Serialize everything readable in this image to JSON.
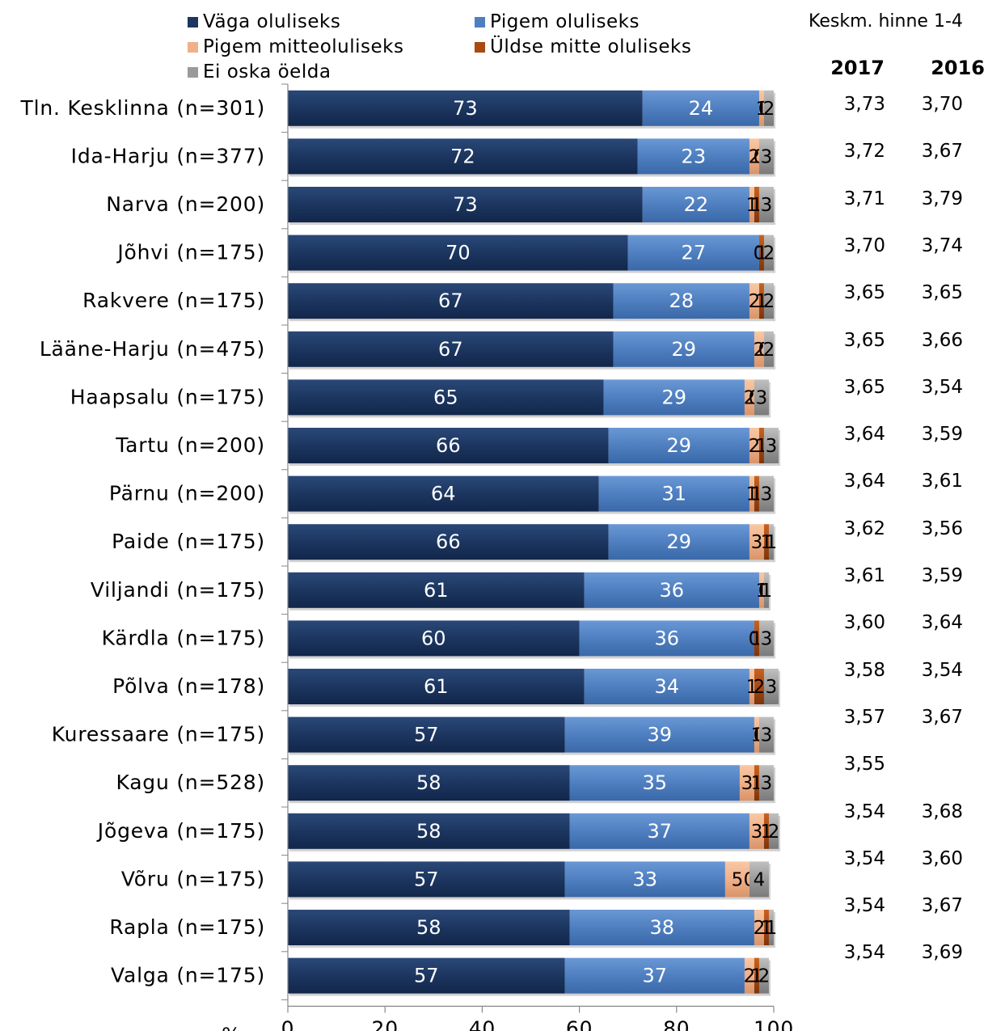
{
  "chart_data": {
    "type": "bar",
    "orientation": "horizontal",
    "stacked": true,
    "xlabel": "%",
    "xlim": [
      0,
      100
    ],
    "xticks": [
      0,
      20,
      40,
      60,
      80,
      100
    ],
    "legend_position": "top",
    "categories": [
      "Tln. Kesklinna (n=301)",
      "Ida-Harju (n=377)",
      "Narva (n=200)",
      "Jõhvi (n=175)",
      "Rakvere (n=175)",
      "Lääne-Harju (n=475)",
      "Haapsalu (n=175)",
      "Tartu (n=200)",
      "Pärnu (n=200)",
      "Paide (n=175)",
      "Viljandi (n=175)",
      "Kärdla (n=175)",
      "Põlva (n=178)",
      "Kuressaare (n=175)",
      "Kagu (n=528)",
      "Jõgeva (n=175)",
      "Võru (n=175)",
      "Rapla (n=175)",
      "Valga (n=175)"
    ],
    "series": [
      {
        "name": "Väga oluliseks",
        "color": "#1c3660",
        "values": [
          73,
          72,
          73,
          70,
          67,
          67,
          65,
          66,
          64,
          66,
          61,
          60,
          61,
          57,
          58,
          58,
          57,
          58,
          57
        ]
      },
      {
        "name": "Pigem oluliseks",
        "color": "#4f7fc0",
        "values": [
          24,
          23,
          22,
          27,
          28,
          29,
          29,
          29,
          31,
          29,
          36,
          36,
          34,
          39,
          35,
          37,
          33,
          38,
          37
        ]
      },
      {
        "name": "Pigem mitteoluliseks",
        "color": "#f0b088",
        "values": [
          1,
          2,
          1,
          0,
          2,
          2,
          2,
          2,
          1,
          3,
          1,
          0,
          1,
          1,
          3,
          3,
          5,
          2,
          2
        ]
      },
      {
        "name": "Üldse mitte oluliseks",
        "color": "#a94a12",
        "values": [
          0,
          0,
          1,
          1,
          1,
          0,
          0,
          1,
          1,
          1,
          0,
          1,
          2,
          0,
          1,
          1,
          0,
          1,
          1
        ]
      },
      {
        "name": "Ei oska öelda",
        "color": "#9a9a9a",
        "values": [
          2,
          3,
          3,
          2,
          2,
          2,
          3,
          3,
          3,
          1,
          1,
          3,
          3,
          3,
          3,
          2,
          4,
          1,
          2
        ]
      }
    ],
    "averages": {
      "title": "Keskm. hinne 1-4",
      "columns": [
        "2017",
        "2016"
      ],
      "values_2017": [
        "3,73",
        "3,72",
        "3,71",
        "3,70",
        "3,65",
        "3,65",
        "3,65",
        "3,64",
        "3,64",
        "3,62",
        "3,61",
        "3,60",
        "3,58",
        "3,57",
        "3,55",
        "3,54",
        "3,54",
        "3,54",
        "3,54"
      ],
      "values_2016": [
        "3,70",
        "3,67",
        "3,79",
        "3,74",
        "3,65",
        "3,66",
        "3,54",
        "3,59",
        "3,61",
        "3,56",
        "3,59",
        "3,64",
        "3,54",
        "3,67",
        "",
        "3,68",
        "3,60",
        "3,67",
        "3,69"
      ]
    }
  }
}
